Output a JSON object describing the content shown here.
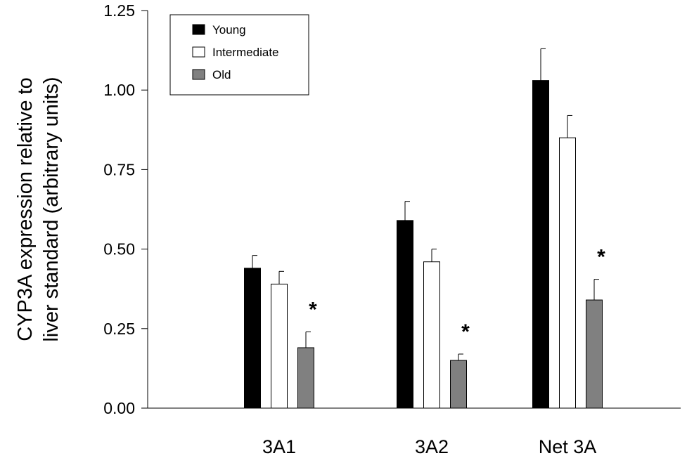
{
  "chart_data": {
    "type": "bar",
    "title": "",
    "xlabel": "",
    "ylabel_lines": [
      "CYP3A expression relative to",
      "liver standard (arbitrary units)"
    ],
    "ylim": [
      0,
      1.25
    ],
    "yticks": [
      0.0,
      0.25,
      0.5,
      0.75,
      1.0,
      1.25
    ],
    "ytick_labels": [
      "0.00",
      "0.25",
      "0.50",
      "0.75",
      "1.00",
      "1.25"
    ],
    "categories": [
      "3A1",
      "3A2",
      "Net 3A"
    ],
    "series": [
      {
        "name": "Young",
        "color": "#000000",
        "values": [
          0.44,
          0.59,
          1.03
        ],
        "errors": [
          0.04,
          0.06,
          0.1
        ]
      },
      {
        "name": "Intermediate",
        "color": "#ffffff",
        "values": [
          0.39,
          0.46,
          0.85
        ],
        "errors": [
          0.04,
          0.04,
          0.07
        ]
      },
      {
        "name": "Old",
        "color": "#808080",
        "values": [
          0.19,
          0.15,
          0.34
        ],
        "errors": [
          0.05,
          0.02,
          0.065
        ]
      }
    ],
    "significance": [
      {
        "category": "3A1",
        "series": "Old",
        "label": "*"
      },
      {
        "category": "3A2",
        "series": "Old",
        "label": "*"
      },
      {
        "category": "Net 3A",
        "series": "Old",
        "label": "*"
      }
    ],
    "grid": false,
    "legend": "top-left"
  }
}
